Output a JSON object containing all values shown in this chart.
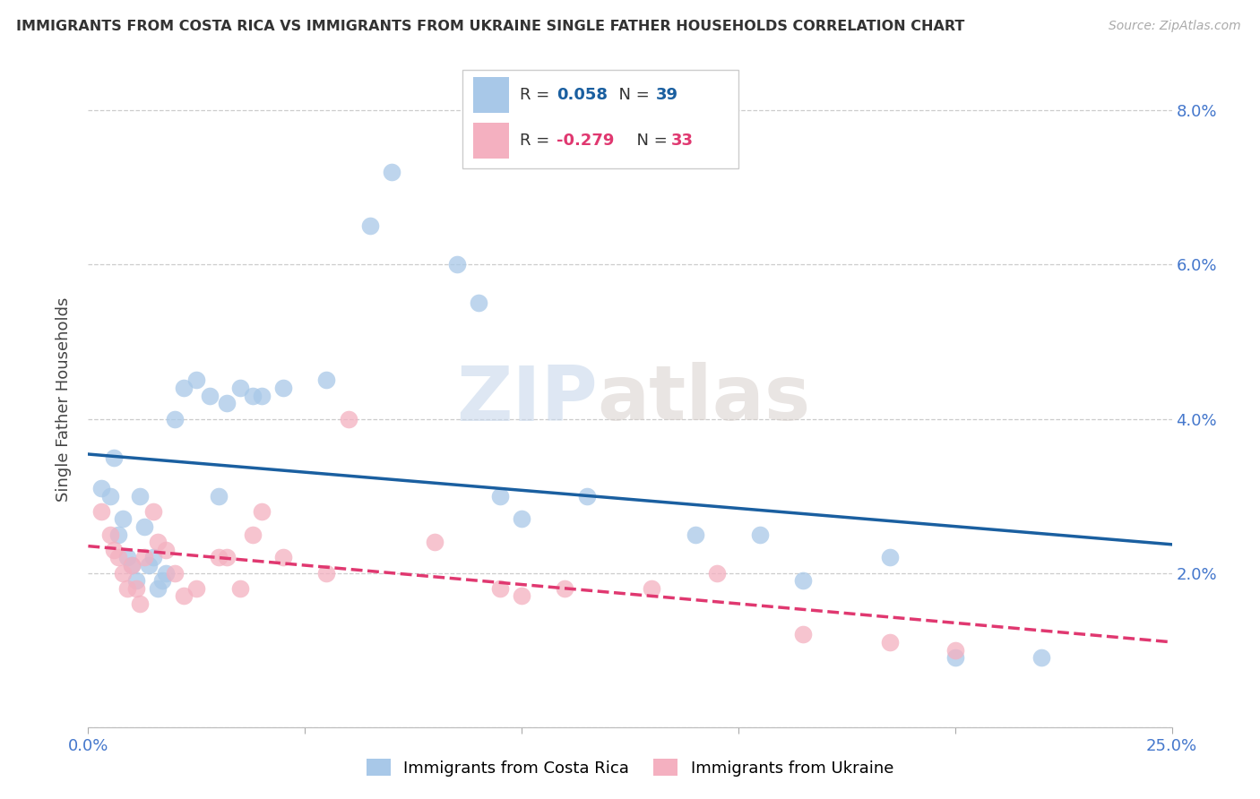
{
  "title": "IMMIGRANTS FROM COSTA RICA VS IMMIGRANTS FROM UKRAINE SINGLE FATHER HOUSEHOLDS CORRELATION CHART",
  "source": "Source: ZipAtlas.com",
  "ylabel": "Single Father Households",
  "xlim": [
    0.0,
    0.25
  ],
  "ylim": [
    0.0,
    0.085
  ],
  "costa_rica_R": 0.058,
  "costa_rica_N": 39,
  "ukraine_R": -0.279,
  "ukraine_N": 33,
  "costa_rica_color": "#a8c8e8",
  "ukraine_color": "#f4b0c0",
  "costa_rica_line_color": "#1a5fa0",
  "ukraine_line_color": "#e03870",
  "costa_rica_x": [
    0.003,
    0.005,
    0.006,
    0.007,
    0.008,
    0.009,
    0.01,
    0.011,
    0.012,
    0.013,
    0.014,
    0.015,
    0.016,
    0.017,
    0.018,
    0.02,
    0.022,
    0.025,
    0.028,
    0.03,
    0.032,
    0.035,
    0.038,
    0.04,
    0.045,
    0.055,
    0.065,
    0.07,
    0.085,
    0.09,
    0.095,
    0.1,
    0.115,
    0.14,
    0.155,
    0.165,
    0.185,
    0.2,
    0.22
  ],
  "costa_rica_y": [
    0.031,
    0.03,
    0.035,
    0.025,
    0.027,
    0.022,
    0.021,
    0.019,
    0.03,
    0.026,
    0.021,
    0.022,
    0.018,
    0.019,
    0.02,
    0.04,
    0.044,
    0.045,
    0.043,
    0.03,
    0.042,
    0.044,
    0.043,
    0.043,
    0.044,
    0.045,
    0.065,
    0.072,
    0.06,
    0.055,
    0.03,
    0.027,
    0.03,
    0.025,
    0.025,
    0.019,
    0.022,
    0.009,
    0.009
  ],
  "ukraine_x": [
    0.003,
    0.005,
    0.006,
    0.007,
    0.008,
    0.009,
    0.01,
    0.011,
    0.012,
    0.013,
    0.015,
    0.016,
    0.018,
    0.02,
    0.022,
    0.025,
    0.03,
    0.032,
    0.035,
    0.038,
    0.04,
    0.045,
    0.055,
    0.06,
    0.08,
    0.095,
    0.1,
    0.11,
    0.13,
    0.145,
    0.165,
    0.185,
    0.2
  ],
  "ukraine_y": [
    0.028,
    0.025,
    0.023,
    0.022,
    0.02,
    0.018,
    0.021,
    0.018,
    0.016,
    0.022,
    0.028,
    0.024,
    0.023,
    0.02,
    0.017,
    0.018,
    0.022,
    0.022,
    0.018,
    0.025,
    0.028,
    0.022,
    0.02,
    0.04,
    0.024,
    0.018,
    0.017,
    0.018,
    0.018,
    0.02,
    0.012,
    0.011,
    0.01
  ]
}
